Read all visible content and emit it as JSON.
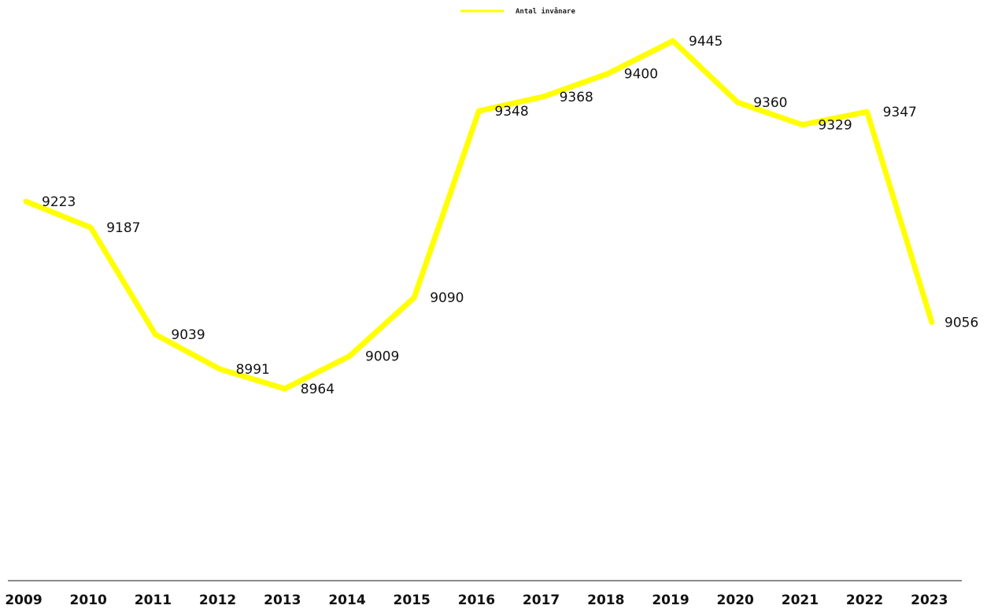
{
  "chart_data": {
    "type": "line",
    "categories": [
      "2009",
      "2010",
      "2011",
      "2012",
      "2013",
      "2014",
      "2015",
      "2016",
      "2017",
      "2018",
      "2019",
      "2020",
      "2021",
      "2022",
      "2023"
    ],
    "series": [
      {
        "name": "Antal invånare",
        "values": [
          9223,
          9187,
          9039,
          8991,
          8964,
          9009,
          9090,
          9348,
          9368,
          9400,
          9445,
          9360,
          9329,
          9347,
          9056
        ],
        "color": "#ffff00"
      }
    ],
    "title": "",
    "xlabel": "",
    "ylabel": "",
    "legend_position": "top-center",
    "data_labels": true,
    "grid": false
  }
}
